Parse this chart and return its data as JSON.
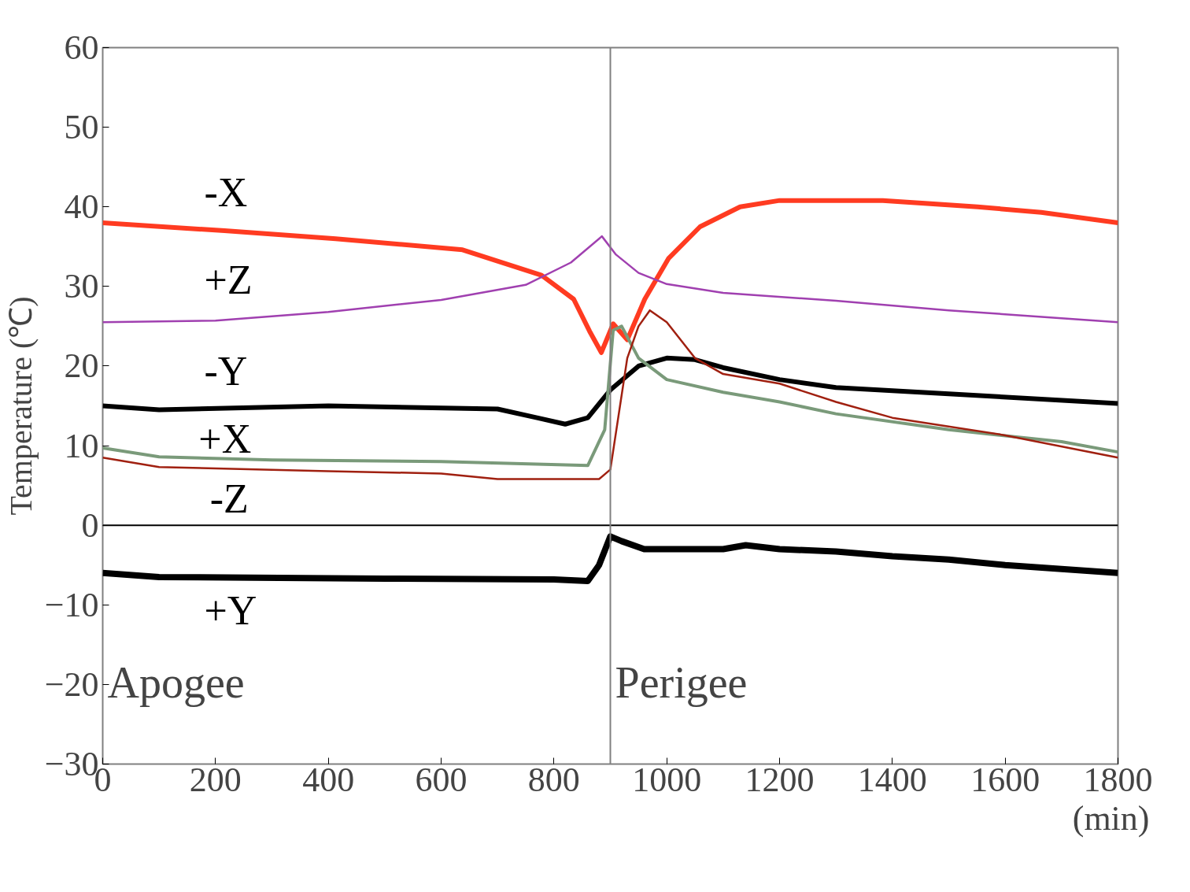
{
  "chart_data": {
    "type": "line",
    "xlabel": "(min)",
    "ylabel": "Temperature (℃)",
    "xlim": [
      0,
      1800
    ],
    "ylim": [
      -30,
      60
    ],
    "xticks": [
      0,
      200,
      400,
      600,
      800,
      1000,
      1200,
      1400,
      1600,
      1800
    ],
    "yticks": [
      -30,
      -20,
      -10,
      0,
      10,
      20,
      30,
      40,
      50,
      60
    ],
    "grid": false,
    "marker": "none",
    "line_style": "solid",
    "series": [
      {
        "name": "-X",
        "color": "#ff3b21",
        "x": [
          0,
          216,
          413,
          638,
          778,
          835,
          863,
          884,
          905,
          930,
          961,
          1003,
          1059,
          1130,
          1200,
          1383,
          1551,
          1664,
          1800
        ],
        "values": [
          38,
          37,
          36,
          34.6,
          31.4,
          28.4,
          24.4,
          21.7,
          25.3,
          23.3,
          28.4,
          33.5,
          37.5,
          40,
          40.8,
          40.8,
          40,
          39.3,
          38
        ]
      },
      {
        "name": "+Z",
        "color": "#a040b0",
        "x": [
          0,
          200,
          400,
          600,
          750,
          830,
          885,
          910,
          950,
          1000,
          1100,
          1300,
          1500,
          1700,
          1800
        ],
        "values": [
          25.5,
          25.7,
          26.8,
          28.3,
          30.2,
          33,
          36.3,
          34,
          31.7,
          30.3,
          29.2,
          28.2,
          27,
          26,
          25.5
        ]
      },
      {
        "name": "-Y",
        "color": "#000000",
        "x": [
          0,
          100,
          400,
          700,
          770,
          820,
          860,
          900,
          950,
          1000,
          1050,
          1100,
          1200,
          1300,
          1500,
          1800
        ],
        "values": [
          15,
          14.5,
          15,
          14.6,
          13.5,
          12.7,
          13.5,
          17,
          20,
          21,
          20.8,
          19.8,
          18.3,
          17.3,
          16.5,
          15.3
        ]
      },
      {
        "name": "+X",
        "color": "#7a9a7a",
        "x": [
          0,
          100,
          300,
          600,
          860,
          890,
          905,
          920,
          950,
          1000,
          1100,
          1200,
          1300,
          1500,
          1700,
          1800
        ],
        "values": [
          9.7,
          8.6,
          8.2,
          8,
          7.5,
          12,
          24.5,
          25,
          21,
          18.3,
          16.7,
          15.5,
          14,
          12,
          10.5,
          9.2
        ]
      },
      {
        "name": "-Z",
        "color": "#a02010",
        "x": [
          0,
          100,
          400,
          600,
          700,
          880,
          900,
          915,
          930,
          950,
          970,
          1000,
          1050,
          1100,
          1200,
          1300,
          1400,
          1600,
          1800
        ],
        "values": [
          8.5,
          7.3,
          6.8,
          6.5,
          5.8,
          5.8,
          7,
          14,
          21,
          25,
          27,
          25.5,
          21,
          19,
          17.8,
          15.5,
          13.5,
          11.3,
          8.5
        ]
      },
      {
        "name": "+Y",
        "color": "#000000",
        "x": [
          0,
          100,
          500,
          800,
          860,
          880,
          900,
          920,
          960,
          1100,
          1140,
          1200,
          1300,
          1400,
          1500,
          1600,
          1800
        ],
        "values": [
          -6,
          -6.5,
          -6.7,
          -6.8,
          -7,
          -5,
          -1.4,
          -2,
          -3,
          -3,
          -2.5,
          -3,
          -3.3,
          -3.9,
          -4.3,
          -5,
          -6
        ]
      }
    ],
    "ref_lines": [
      {
        "axis": "y",
        "value": 0,
        "color": "#000000"
      },
      {
        "axis": "x",
        "value": 900,
        "color": "#808080"
      }
    ],
    "annotations": [
      "Apogee",
      "Perigee"
    ]
  }
}
